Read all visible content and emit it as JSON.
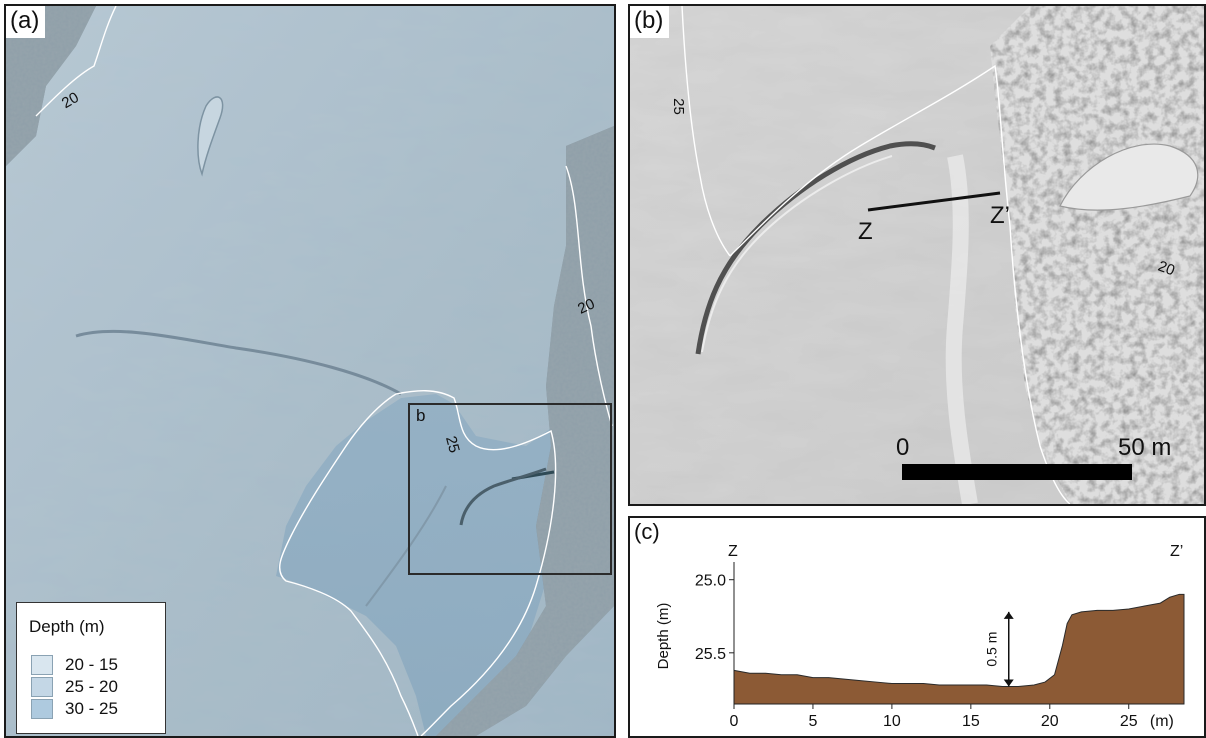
{
  "panel_a": {
    "tag": "(a)",
    "contours": [
      {
        "label": "20"
      },
      {
        "label": "20"
      },
      {
        "label": "25"
      }
    ],
    "inset_label": "b",
    "legend": {
      "title": "Depth (m)",
      "items": [
        {
          "label": "20 - 15",
          "color": "#d9e6ef"
        },
        {
          "label": "25 - 20",
          "color": "#c4d7e6"
        },
        {
          "label": "30 - 25",
          "color": "#aecadf"
        }
      ]
    },
    "colors": {
      "seabed": "#a7bccb",
      "contour": "#ffffff",
      "frame": "#2b2b2b"
    }
  },
  "panel_b": {
    "tag": "(b)",
    "contours": [
      {
        "label": "25"
      },
      {
        "label": "20"
      }
    ],
    "profile_start": "Z",
    "profile_end": "Z’",
    "scale_bar": {
      "start_label": "0",
      "end_label": "50 m"
    },
    "colors": {
      "hillshade": "#d2d2d2"
    }
  },
  "panel_c": {
    "tag": "(c)",
    "profile_start": "Z",
    "profile_end": "Z’",
    "ylabel": "Depth (m)",
    "xunit": "(m)",
    "annotation": "0.5 m",
    "colors": {
      "fill": "#8c5a35",
      "outline": "#2a2a2a"
    }
  },
  "chart_data": {
    "type": "area",
    "xlabel": "(m)",
    "ylabel": "Depth (m)",
    "xlim": [
      0,
      28.5
    ],
    "ylim": [
      25.85,
      24.92
    ],
    "x_ticks": [
      0,
      5,
      10,
      15,
      20,
      25
    ],
    "y_ticks": [
      25.0,
      25.5
    ],
    "y_tick_labels": [
      "25.0",
      "25.5"
    ],
    "x_tick_labels": [
      "0",
      "5",
      "10",
      "15",
      "20",
      "25"
    ],
    "x": [
      0,
      1,
      2,
      3,
      4,
      5,
      6,
      7,
      8,
      9,
      10,
      11,
      12,
      13,
      14,
      15,
      16,
      17,
      18,
      19,
      19.7,
      20.3,
      20.8,
      21.1,
      21.4,
      22,
      23,
      24,
      25,
      26,
      27,
      27.6,
      28.2,
      28.5
    ],
    "y": [
      25.62,
      25.64,
      25.64,
      25.65,
      25.65,
      25.67,
      25.67,
      25.68,
      25.69,
      25.7,
      25.71,
      25.71,
      25.71,
      25.72,
      25.72,
      25.72,
      25.72,
      25.73,
      25.73,
      25.72,
      25.7,
      25.65,
      25.45,
      25.3,
      25.24,
      25.22,
      25.21,
      25.21,
      25.2,
      25.18,
      25.16,
      25.12,
      25.1,
      25.1
    ],
    "annotation": {
      "text": "0.5 m"
    }
  }
}
